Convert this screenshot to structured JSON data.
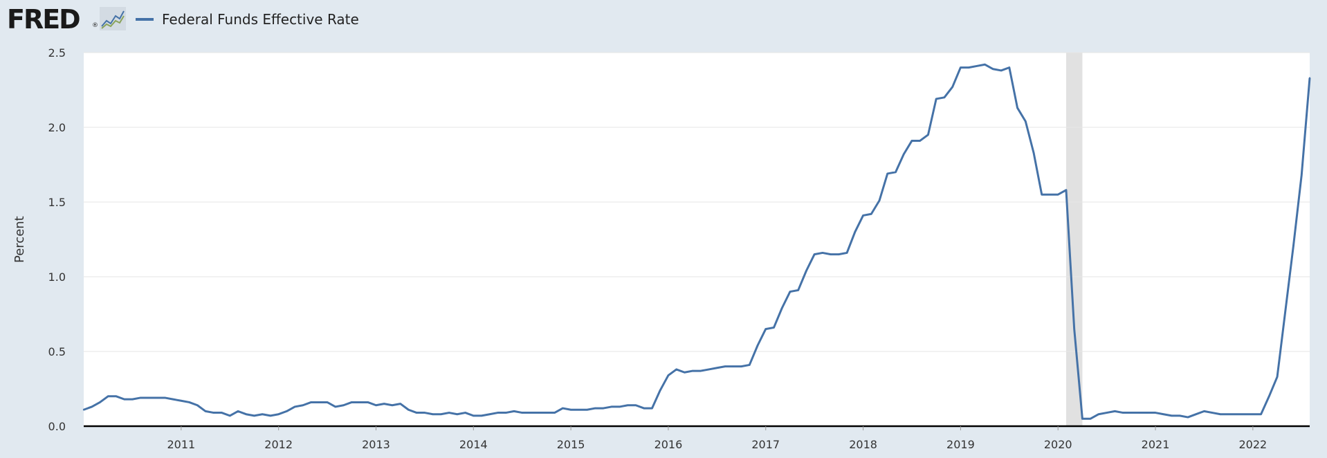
{
  "header": {
    "logo_text": "FRED",
    "logo_mark": "®",
    "legend_label": "Federal Funds Effective Rate"
  },
  "colors": {
    "series": "#4572a7",
    "background": "#e1e9f0",
    "plot": "#ffffff",
    "recession": "#e1e1e1",
    "grid": "#e6e6e6"
  },
  "icons": {
    "mini_chart": "line-chart-icon"
  },
  "chart_data": {
    "type": "line",
    "title": "",
    "xlabel": "",
    "ylabel": "Percent",
    "ylim": [
      0,
      2.5
    ],
    "xlim": [
      "2010-01",
      "2022-08"
    ],
    "yticks": [
      "0.0",
      "0.5",
      "1.0",
      "1.5",
      "2.0",
      "2.5"
    ],
    "xticks": [
      "2011",
      "2012",
      "2013",
      "2014",
      "2015",
      "2016",
      "2017",
      "2018",
      "2019",
      "2020",
      "2021",
      "2022"
    ],
    "grid": true,
    "legend": "top-left",
    "recession": {
      "start": "2020-02",
      "end": "2020-04"
    },
    "series": [
      {
        "name": "Federal Funds Effective Rate",
        "x": [
          "2010-01",
          "2010-02",
          "2010-03",
          "2010-04",
          "2010-05",
          "2010-06",
          "2010-07",
          "2010-08",
          "2010-09",
          "2010-10",
          "2010-11",
          "2010-12",
          "2011-01",
          "2011-02",
          "2011-03",
          "2011-04",
          "2011-05",
          "2011-06",
          "2011-07",
          "2011-08",
          "2011-09",
          "2011-10",
          "2011-11",
          "2011-12",
          "2012-01",
          "2012-02",
          "2012-03",
          "2012-04",
          "2012-05",
          "2012-06",
          "2012-07",
          "2012-08",
          "2012-09",
          "2012-10",
          "2012-11",
          "2012-12",
          "2013-01",
          "2013-02",
          "2013-03",
          "2013-04",
          "2013-05",
          "2013-06",
          "2013-07",
          "2013-08",
          "2013-09",
          "2013-10",
          "2013-11",
          "2013-12",
          "2014-01",
          "2014-02",
          "2014-03",
          "2014-04",
          "2014-05",
          "2014-06",
          "2014-07",
          "2014-08",
          "2014-09",
          "2014-10",
          "2014-11",
          "2014-12",
          "2015-01",
          "2015-02",
          "2015-03",
          "2015-04",
          "2015-05",
          "2015-06",
          "2015-07",
          "2015-08",
          "2015-09",
          "2015-10",
          "2015-11",
          "2015-12",
          "2016-01",
          "2016-02",
          "2016-03",
          "2016-04",
          "2016-05",
          "2016-06",
          "2016-07",
          "2016-08",
          "2016-09",
          "2016-10",
          "2016-11",
          "2016-12",
          "2017-01",
          "2017-02",
          "2017-03",
          "2017-04",
          "2017-05",
          "2017-06",
          "2017-07",
          "2017-08",
          "2017-09",
          "2017-10",
          "2017-11",
          "2017-12",
          "2018-01",
          "2018-02",
          "2018-03",
          "2018-04",
          "2018-05",
          "2018-06",
          "2018-07",
          "2018-08",
          "2018-09",
          "2018-10",
          "2018-11",
          "2018-12",
          "2019-01",
          "2019-02",
          "2019-03",
          "2019-04",
          "2019-05",
          "2019-06",
          "2019-07",
          "2019-08",
          "2019-09",
          "2019-10",
          "2019-11",
          "2019-12",
          "2020-01",
          "2020-02",
          "2020-03",
          "2020-04",
          "2020-05",
          "2020-06",
          "2020-07",
          "2020-08",
          "2020-09",
          "2020-10",
          "2020-11",
          "2020-12",
          "2021-01",
          "2021-02",
          "2021-03",
          "2021-04",
          "2021-05",
          "2021-06",
          "2021-07",
          "2021-08",
          "2021-09",
          "2021-10",
          "2021-11",
          "2021-12",
          "2022-01",
          "2022-02",
          "2022-03",
          "2022-04",
          "2022-05",
          "2022-06",
          "2022-07",
          "2022-08"
        ],
        "values": [
          0.11,
          0.13,
          0.16,
          0.2,
          0.2,
          0.18,
          0.18,
          0.19,
          0.19,
          0.19,
          0.19,
          0.18,
          0.17,
          0.16,
          0.14,
          0.1,
          0.09,
          0.09,
          0.07,
          0.1,
          0.08,
          0.07,
          0.08,
          0.07,
          0.08,
          0.1,
          0.13,
          0.14,
          0.16,
          0.16,
          0.16,
          0.13,
          0.14,
          0.16,
          0.16,
          0.16,
          0.14,
          0.15,
          0.14,
          0.15,
          0.11,
          0.09,
          0.09,
          0.08,
          0.08,
          0.09,
          0.08,
          0.09,
          0.07,
          0.07,
          0.08,
          0.09,
          0.09,
          0.1,
          0.09,
          0.09,
          0.09,
          0.09,
          0.09,
          0.12,
          0.11,
          0.11,
          0.11,
          0.12,
          0.12,
          0.13,
          0.13,
          0.14,
          0.14,
          0.12,
          0.12,
          0.24,
          0.34,
          0.38,
          0.36,
          0.37,
          0.37,
          0.38,
          0.39,
          0.4,
          0.4,
          0.4,
          0.41,
          0.54,
          0.65,
          0.66,
          0.79,
          0.9,
          0.91,
          1.04,
          1.15,
          1.16,
          1.15,
          1.15,
          1.16,
          1.3,
          1.41,
          1.42,
          1.51,
          1.69,
          1.7,
          1.82,
          1.91,
          1.91,
          1.95,
          2.19,
          2.2,
          2.27,
          2.4,
          2.4,
          2.41,
          2.42,
          2.39,
          2.38,
          2.4,
          2.13,
          2.04,
          1.83,
          1.55,
          1.55,
          1.55,
          1.58,
          0.65,
          0.05,
          0.05,
          0.08,
          0.09,
          0.1,
          0.09,
          0.09,
          0.09,
          0.09,
          0.09,
          0.08,
          0.07,
          0.07,
          0.06,
          0.08,
          0.1,
          0.09,
          0.08,
          0.08,
          0.08,
          0.08,
          0.08,
          0.08,
          0.2,
          0.33,
          0.77,
          1.21,
          1.68,
          2.33
        ]
      }
    ]
  }
}
